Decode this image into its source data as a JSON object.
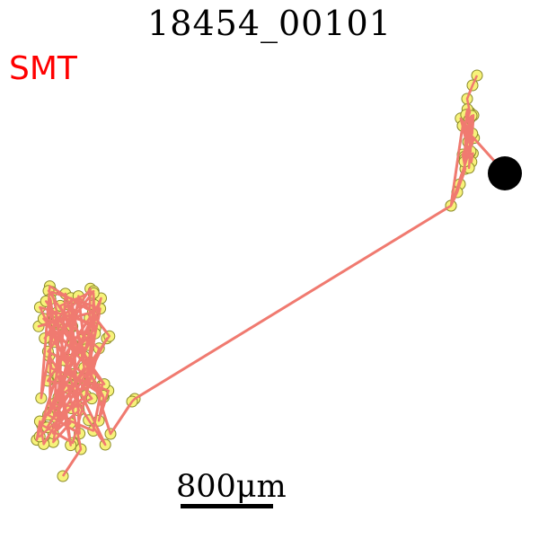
{
  "title": "18454_00101",
  "tag": "SMT",
  "scale_bar": {
    "label": "800μm"
  },
  "colors": {
    "track": "#f07a70",
    "point_fill": "#f7f27a",
    "point_stroke": "#8a8a2a",
    "end_marker": "#000000",
    "tag": "#ff0000"
  }
}
